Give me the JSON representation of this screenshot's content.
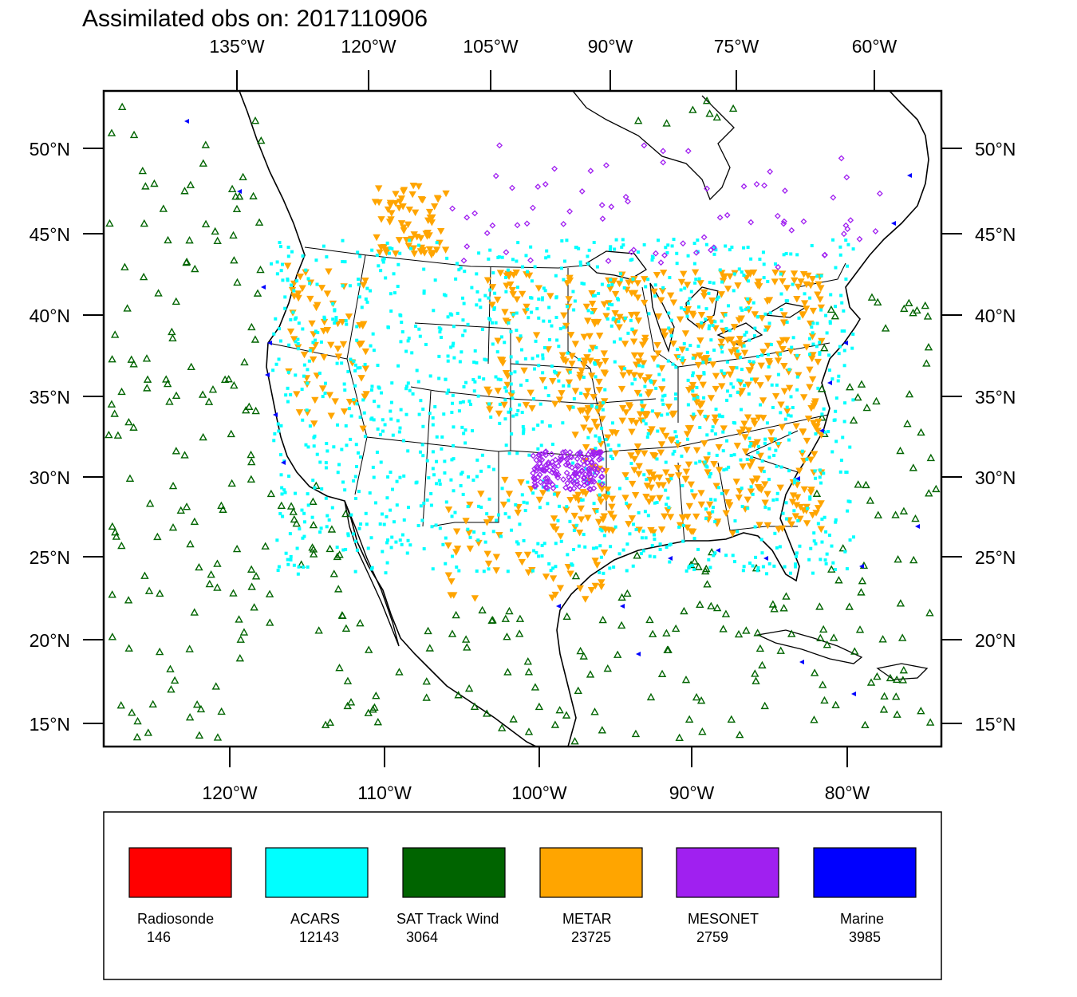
{
  "title": "Assimilated obs on: 2017110906",
  "top_axis_labels": [
    "135°W",
    "120°W",
    "105°W",
    "90°W",
    "75°W",
    "60°W"
  ],
  "bottom_axis_labels": [
    "120°W",
    "110°W",
    "100°W",
    "90°W",
    "80°W"
  ],
  "lat_labels": [
    "50°N",
    "45°N",
    "40°N",
    "35°N",
    "30°N",
    "25°N",
    "20°N",
    "15°N"
  ],
  "legend": [
    {
      "name": "Radiosonde",
      "count": "146",
      "color": "#ff0000"
    },
    {
      "name": "ACARS",
      "count": "12143",
      "color": "#00ffff"
    },
    {
      "name": "SAT Track Wind",
      "count": "3064",
      "color": "#006400"
    },
    {
      "name": "METAR",
      "count": "23725",
      "color": "#ffa500"
    },
    {
      "name": "MESONET",
      "count": "2759",
      "color": "#a020f0"
    },
    {
      "name": "Marine",
      "count": "3985",
      "color": "#0000ff"
    }
  ]
}
